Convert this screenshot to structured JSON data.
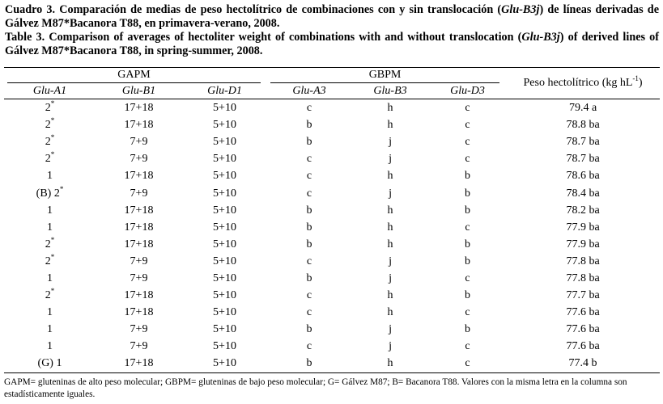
{
  "caption": {
    "spanish": [
      {
        "text": "Cuadro 3. Comparación de medias de peso hectolítrico de combinaciones con y sin translocación ("
      },
      {
        "text": "Glu-B3j",
        "italic": true
      },
      {
        "text": ") de líneas derivadas de Gálvez M87*Bacanora T88, en primavera-verano, 2008."
      }
    ],
    "english": [
      {
        "text": "Table 3. Comparison of averages of hectoliter weight of combinations with and without translocation ("
      },
      {
        "text": "Glu-B3j",
        "italic": true
      },
      {
        "text": ") of derived lines of Gálvez M87*Bacanora T88, in spring-summer, 2008."
      }
    ]
  },
  "table": {
    "groups": [
      "GAPM",
      "GBPM"
    ],
    "columns": [
      [
        {
          "text": "Glu-A1",
          "italic": true
        }
      ],
      [
        {
          "text": "Glu-B1",
          "italic": true
        }
      ],
      [
        {
          "text": "Glu-D1",
          "italic": true
        }
      ],
      [
        {
          "text": "Glu-A3",
          "italic": true
        }
      ],
      [
        {
          "text": "Glu-B3",
          "italic": true
        }
      ],
      [
        {
          "text": "Glu-D3",
          "italic": true
        }
      ],
      [
        {
          "text": "Peso hectolítrico (kg hL"
        },
        {
          "text": "-1",
          "sup": true
        },
        {
          "text": ")"
        }
      ]
    ],
    "rows": [
      [
        {
          "text": "2",
          "sup": "*"
        },
        "17+18",
        "5+10",
        "c",
        "h",
        "c",
        "79.4 a"
      ],
      [
        {
          "text": "2",
          "sup": "*"
        },
        "17+18",
        "5+10",
        "b",
        "h",
        "c",
        "78.8 ba"
      ],
      [
        {
          "text": "2",
          "sup": "*"
        },
        "7+9",
        "5+10",
        "b",
        "j",
        "c",
        "78.7 ba"
      ],
      [
        {
          "text": "2",
          "sup": "*"
        },
        "7+9",
        "5+10",
        "c",
        "j",
        "c",
        "78.7 ba"
      ],
      [
        {
          "text": "1"
        },
        "17+18",
        "5+10",
        "c",
        "h",
        "b",
        "78.6 ba"
      ],
      [
        {
          "text": "(B) 2",
          "sup": "*"
        },
        "7+9",
        "5+10",
        "c",
        "j",
        "b",
        "78.4 ba"
      ],
      [
        {
          "text": "1"
        },
        "17+18",
        "5+10",
        "b",
        "h",
        "b",
        "78.2 ba"
      ],
      [
        {
          "text": "1"
        },
        "17+18",
        "5+10",
        "b",
        "h",
        "c",
        "77.9 ba"
      ],
      [
        {
          "text": "2",
          "sup": "*"
        },
        "17+18",
        "5+10",
        "b",
        "h",
        "b",
        "77.9 ba"
      ],
      [
        {
          "text": "2",
          "sup": "*"
        },
        "7+9",
        "5+10",
        "c",
        "j",
        "b",
        "77.8 ba"
      ],
      [
        {
          "text": "1"
        },
        "7+9",
        "5+10",
        "b",
        "j",
        "c",
        "77.8 ba"
      ],
      [
        {
          "text": "2",
          "sup": "*"
        },
        "17+18",
        "5+10",
        "c",
        "h",
        "b",
        "77.7 ba"
      ],
      [
        {
          "text": "1"
        },
        "17+18",
        "5+10",
        "c",
        "h",
        "c",
        "77.6 ba"
      ],
      [
        {
          "text": "1"
        },
        "7+9",
        "5+10",
        "b",
        "j",
        "b",
        "77.6 ba"
      ],
      [
        {
          "text": "1"
        },
        "7+9",
        "5+10",
        "c",
        "j",
        "c",
        "77.6 ba"
      ],
      [
        {
          "text": "(G) 1"
        },
        "17+18",
        "5+10",
        "b",
        "h",
        "c",
        "77.4 b"
      ]
    ]
  },
  "footnote": "GAPM= gluteninas de alto peso molecular; GBPM= gluteninas de bajo peso molecular; G= Gálvez M87; B= Bacanora T88. Valores con la misma letra en la columna son estadísticamente iguales."
}
